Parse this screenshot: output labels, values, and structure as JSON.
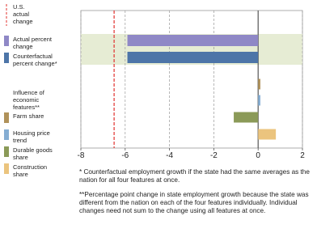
{
  "chart_data": {
    "type": "hbar",
    "xlim": [
      -8,
      2
    ],
    "xticks": [
      -8,
      -6,
      -4,
      -2,
      0,
      2
    ],
    "grid": true,
    "reference_line": {
      "name": "U.S. actual change",
      "value": -6.5,
      "color": "#e0312e"
    },
    "legend_group_title": "Influence of economic features**",
    "series": [
      {
        "name": "Actual percent change",
        "color": "#8f88c6",
        "values": [
          -5.9
        ]
      },
      {
        "name": "Counterfactual percent change*",
        "color": "#4d75a8",
        "values": [
          -5.9
        ]
      },
      {
        "name": "Farm share",
        "color": "#b0925a",
        "values": [
          0.1
        ]
      },
      {
        "name": "Housing price trend",
        "color": "#86aed3",
        "values": [
          0.1
        ]
      },
      {
        "name": "Durable goods share",
        "color": "#8b9a58",
        "values": [
          -1.1
        ]
      },
      {
        "name": "Construction share",
        "color": "#ebc47e",
        "values": [
          0.8
        ]
      }
    ],
    "footnotes": [
      "* Counterfactual employment growth if the state had the same averages as the nation for all four features at once.",
      "**Percentage point change in state employment growth because the state was different from the nation on each of the four features individually. Individual changes need not sum to the change using all features at once."
    ]
  }
}
